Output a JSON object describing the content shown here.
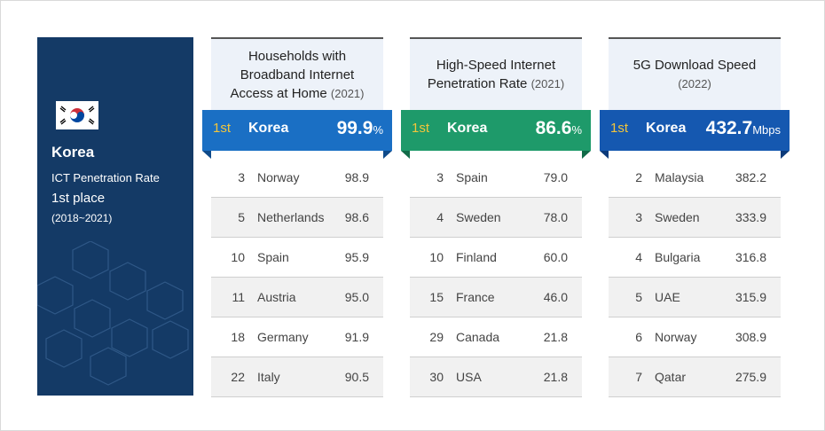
{
  "sidebar": {
    "country": "Korea",
    "line1": "ICT Penetration Rate",
    "line2": "1st place",
    "line3": "(2018~2021)"
  },
  "chart_data": [
    {
      "type": "table",
      "title": "Households with Broadband Internet Access at Home",
      "title_lines": [
        "Households with",
        "Broadband Internet",
        "Access at Home"
      ],
      "year": "(2021)",
      "accent": "#1a6fc4",
      "first": {
        "rank": "1st",
        "name": "Korea",
        "value": "99.9",
        "unit": "%"
      },
      "rows": [
        {
          "rank": "3",
          "name": "Norway",
          "value": "98.9"
        },
        {
          "rank": "5",
          "name": "Netherlands",
          "value": "98.6"
        },
        {
          "rank": "10",
          "name": "Spain",
          "value": "95.9"
        },
        {
          "rank": "11",
          "name": "Austria",
          "value": "95.0"
        },
        {
          "rank": "18",
          "name": "Germany",
          "value": "91.9"
        },
        {
          "rank": "22",
          "name": "Italy",
          "value": "90.5"
        }
      ]
    },
    {
      "type": "table",
      "title": "High-Speed Internet Penetration Rate",
      "title_lines": [
        "High-Speed Internet",
        "Penetration Rate"
      ],
      "year": "(2021)",
      "accent": "#1e9a6a",
      "first": {
        "rank": "1st",
        "name": "Korea",
        "value": "86.6",
        "unit": "%"
      },
      "rows": [
        {
          "rank": "3",
          "name": "Spain",
          "value": "79.0"
        },
        {
          "rank": "4",
          "name": "Sweden",
          "value": "78.0"
        },
        {
          "rank": "10",
          "name": "Finland",
          "value": "60.0"
        },
        {
          "rank": "15",
          "name": "France",
          "value": "46.0"
        },
        {
          "rank": "29",
          "name": "Canada",
          "value": "21.8"
        },
        {
          "rank": "30",
          "name": "USA",
          "value": "21.8"
        }
      ]
    },
    {
      "type": "table",
      "title": "5G Download Speed",
      "title_lines": [
        "5G Download Speed"
      ],
      "year": "(2022)",
      "accent": "#1558b0",
      "first": {
        "rank": "1st",
        "name": "Korea",
        "value": "432.7",
        "unit": "Mbps"
      },
      "rows": [
        {
          "rank": "2",
          "name": "Malaysia",
          "value": "382.2"
        },
        {
          "rank": "3",
          "name": "Sweden",
          "value": "333.9"
        },
        {
          "rank": "4",
          "name": "Bulgaria",
          "value": "316.8"
        },
        {
          "rank": "5",
          "name": "UAE",
          "value": "315.9"
        },
        {
          "rank": "6",
          "name": "Norway",
          "value": "308.9"
        },
        {
          "rank": "7",
          "name": "Qatar",
          "value": "275.9"
        }
      ]
    }
  ]
}
